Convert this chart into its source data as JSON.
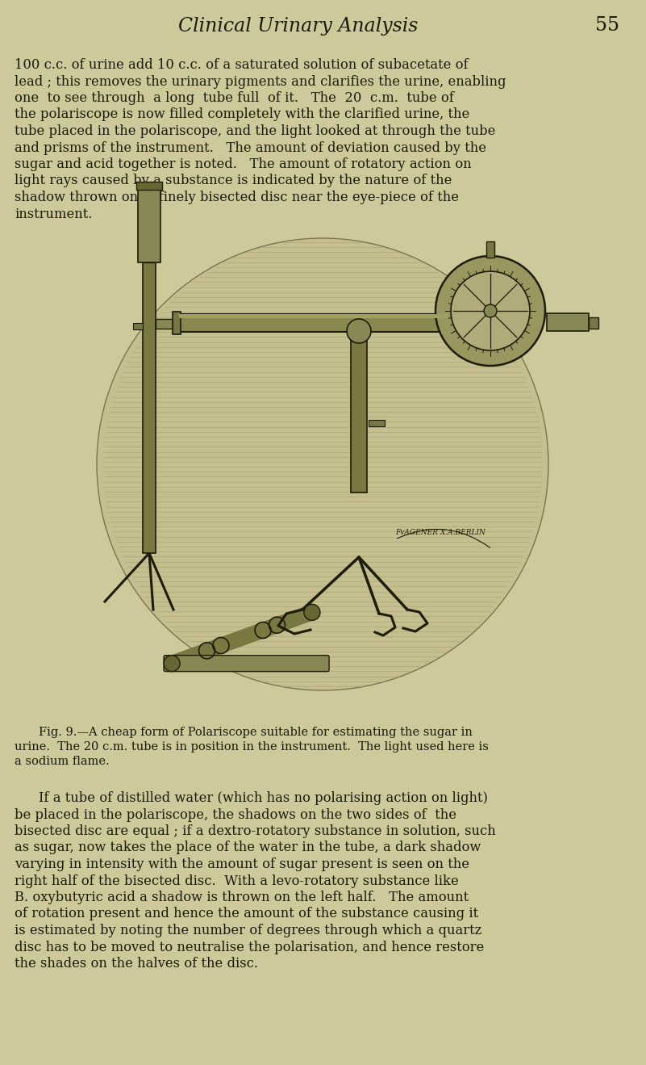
{
  "background_color": "#cdc99a",
  "body_text_color": "#1a1a0a",
  "header_title": "Clinical Urinary Analysis",
  "header_page_num": "55",
  "header_fontsize": 17,
  "body_fontsize": 11.8,
  "caption_fontsize": 10.5,
  "top_paragraph_lines": [
    "100 c.c. of urine add 10 c.c. of a saturated solution of subacetate of",
    "lead ; this removes the urinary pigments and clarifies the urine, enabling",
    "one  to see through  a long  tube full  of it.   The  20  c.m.  tube of",
    "the polariscope is now filled completely with the clarified urine, the",
    "tube placed in the polariscope, and the light looked at through the tube",
    "and prisms of the instrument.   The amount of deviation caused by the",
    "sugar and acid together is noted.   The amount of rotatory action on",
    "light rays caused by a substance is indicated by the nature of the",
    "shadow thrown on  a finely bisected disc near the eye-piece of the",
    "instrument."
  ],
  "caption_lines": [
    "Fig. 9.—A cheap form of Polariscope suitable for estimating the sugar in",
    "urine.  The 20 c.m. tube is in position in the instrument.  The light used here is",
    "a sodium flame."
  ],
  "bottom_paragraph_lines": [
    "If a tube of distilled water (which has no polarising action on light)",
    "be placed in the polariscope, the shadows on the two sides of  the",
    "bisected disc are equal ; if a dextro-rotatory substance in solution, such",
    "as sugar, now takes the place of the water in the tube, a dark shadow",
    "varying in intensity with the amount of sugar present is seen on the",
    "right half of the bisected disc.  With a levo-rotatory substance like",
    "B. oxybutyric acid a shadow is thrown on the left half.   The amount",
    "of rotation present and hence the amount of the substance causing it",
    "is estimated by noting the number of degrees through which a quartz",
    "disc has to be moved to neutralise the polarisation, and hence restore",
    "the shades on the halves of the disc."
  ],
  "marker_label": "FᴠAGENER X.A.BERLIN"
}
